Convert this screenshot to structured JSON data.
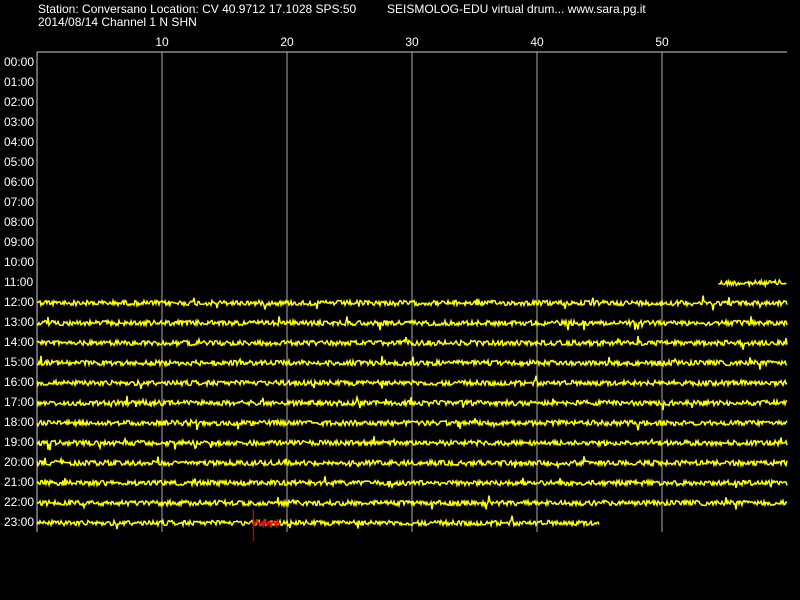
{
  "chart_data": {
    "type": "helicorder",
    "title": "Station: Conversano Location: CV 40.9712 17.1028 SPS:50",
    "source": "SEISMOLOG-EDU virtual drum... www.sara.pg.it",
    "subtitle": "2014/08/14  Channel 1 N SHN",
    "xlim": [
      0,
      60
    ],
    "xticks": [
      10,
      20,
      30,
      40,
      50
    ],
    "grid": true,
    "color": "#ffff00",
    "event_color": "#ff0000",
    "rows": [
      {
        "label": "00:00"
      },
      {
        "label": "01:00"
      },
      {
        "label": "02:00"
      },
      {
        "label": "03:00"
      },
      {
        "label": "04:00"
      },
      {
        "label": "05:00"
      },
      {
        "label": "06:00"
      },
      {
        "label": "07:00"
      },
      {
        "label": "08:00"
      },
      {
        "label": "09:00"
      },
      {
        "label": "10:00"
      },
      {
        "label": "11:00",
        "start": 54.5,
        "end": 60
      },
      {
        "label": "12:00",
        "start": 0,
        "end": 60
      },
      {
        "label": "13:00",
        "start": 0,
        "end": 60
      },
      {
        "label": "14:00",
        "start": 0,
        "end": 60
      },
      {
        "label": "15:00",
        "start": 0,
        "end": 60
      },
      {
        "label": "16:00",
        "start": 0,
        "end": 60
      },
      {
        "label": "17:00",
        "start": 0,
        "end": 60
      },
      {
        "label": "18:00",
        "start": 0,
        "end": 60
      },
      {
        "label": "19:00",
        "start": 0,
        "end": 60
      },
      {
        "label": "20:00",
        "start": 0,
        "end": 60
      },
      {
        "label": "21:00",
        "start": 0,
        "end": 60
      },
      {
        "label": "22:00",
        "start": 0,
        "end": 60
      },
      {
        "label": "23:00",
        "start": 0,
        "end": 45,
        "event": [
          17.3,
          19.5
        ]
      }
    ]
  }
}
